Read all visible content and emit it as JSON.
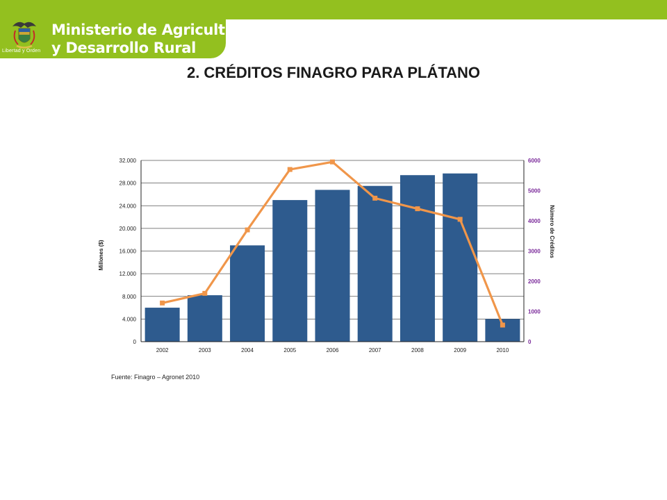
{
  "header": {
    "ministry_line1": "Ministerio de Agricultura",
    "ministry_line2": "y Desarrollo Rural",
    "motto": "Libertad y Orden",
    "brand_color": "#93c01f",
    "crest_icon": "colombia-coat-of-arms-icon"
  },
  "slide": {
    "title": "2. CRÉDITOS FINAGRO PARA PLÁTANO"
  },
  "chart_data": {
    "type": "bar",
    "categories": [
      "2002",
      "2003",
      "2004",
      "2005",
      "2006",
      "2007",
      "2008",
      "2009",
      "2010"
    ],
    "series": [
      {
        "axis": "left",
        "type": "bar",
        "color": "#2e5b8e",
        "values": [
          6000,
          8200,
          17000,
          25000,
          26800,
          27500,
          29400,
          29700,
          4000
        ]
      },
      {
        "axis": "right",
        "type": "line",
        "color": "#f0964a",
        "values": [
          1280,
          1600,
          3700,
          5700,
          5950,
          4750,
          4400,
          4050,
          550
        ]
      }
    ],
    "ylabel": "Millones ($)",
    "y2label": "Número de Créditos",
    "ylim": [
      0,
      32000
    ],
    "y2lim": [
      0,
      6000
    ],
    "yticks": [
      "0",
      "4.000",
      "8.000",
      "12.000",
      "16.000",
      "20.000",
      "24.000",
      "28.000",
      "32.000"
    ],
    "y2ticks": [
      "0",
      "1000",
      "2000",
      "3000",
      "4000",
      "5000",
      "6000"
    ],
    "y2tick_color": "#7a2a9a",
    "grid": true
  },
  "source_text": "Fuente: Finagro – Agronet 2010"
}
